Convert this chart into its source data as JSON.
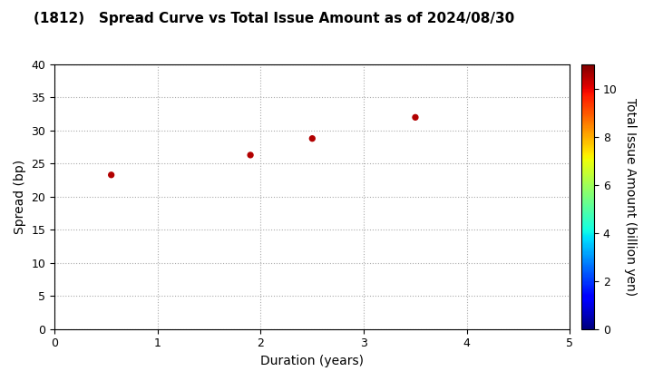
{
  "title": "(1812)   Spread Curve vs Total Issue Amount as of 2024/08/30",
  "points": [
    {
      "duration": 0.55,
      "spread": 23.3,
      "amount": 10.5
    },
    {
      "duration": 1.9,
      "spread": 26.3,
      "amount": 10.5
    },
    {
      "duration": 2.5,
      "spread": 28.8,
      "amount": 10.5
    },
    {
      "duration": 3.5,
      "spread": 32.0,
      "amount": 10.5
    }
  ],
  "xlabel": "Duration (years)",
  "ylabel": "Spread (bp)",
  "colorbar_label": "Total Issue Amount (billion yen)",
  "xlim": [
    0,
    5
  ],
  "ylim": [
    0,
    40
  ],
  "xticks": [
    0,
    1,
    2,
    3,
    4,
    5
  ],
  "yticks": [
    0,
    5,
    10,
    15,
    20,
    25,
    30,
    35,
    40
  ],
  "colorbar_min": 0,
  "colorbar_max": 11,
  "colorbar_ticks": [
    0,
    2,
    4,
    6,
    8,
    10
  ],
  "marker_size": 18,
  "background_color": "#ffffff",
  "title_fontsize": 11,
  "grid_color": "#aaaaaa",
  "axis_label_fontsize": 10,
  "tick_fontsize": 9
}
